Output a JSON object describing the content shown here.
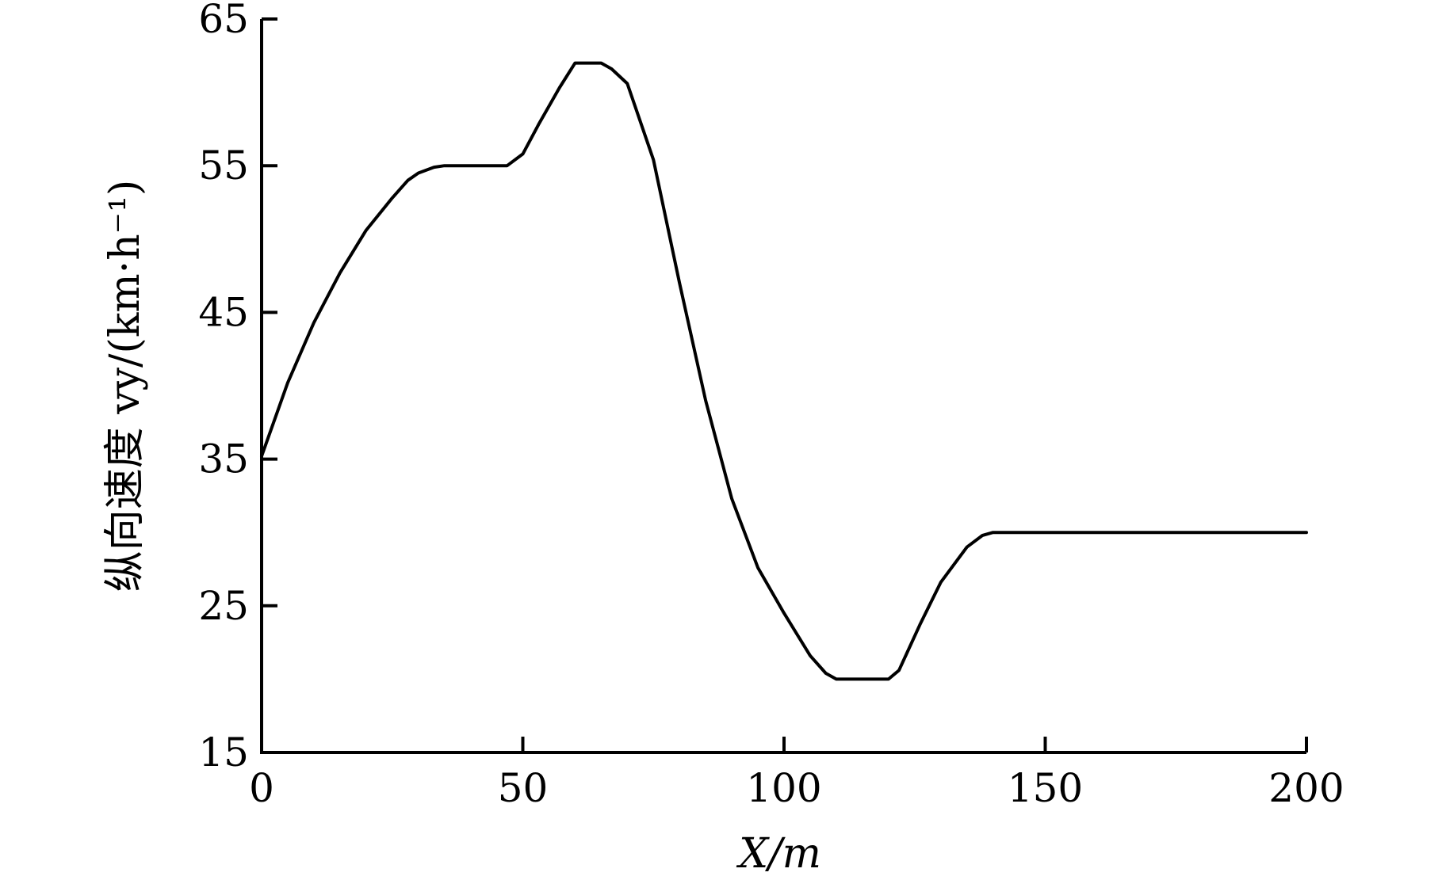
{
  "chart_data": {
    "type": "line",
    "title": "",
    "xlabel": "X/m",
    "ylabel": "纵向速度 vy/(km·h⁻¹)",
    "xlim": [
      0,
      200
    ],
    "ylim": [
      15,
      65
    ],
    "xticks": [
      0,
      50,
      100,
      150,
      200
    ],
    "yticks": [
      15,
      25,
      35,
      45,
      55,
      65
    ],
    "grid": false,
    "series": [
      {
        "x": [
          0,
          5,
          10,
          15,
          20,
          25,
          28,
          30,
          33,
          35,
          40,
          47,
          50,
          53,
          57,
          60,
          63,
          65,
          67,
          70,
          75,
          80,
          85,
          90,
          95,
          100,
          105,
          108,
          110,
          112,
          115,
          118,
          120,
          122,
          126,
          130,
          135,
          138,
          140,
          150,
          160,
          170,
          180,
          190,
          200
        ],
        "y": [
          35.2,
          40.2,
          44.3,
          47.7,
          50.6,
          52.8,
          54.0,
          54.5,
          54.9,
          55.0,
          55.0,
          55.0,
          55.8,
          57.8,
          60.3,
          62.0,
          62.0,
          62.0,
          61.6,
          60.6,
          55.4,
          47.0,
          39.0,
          32.3,
          27.6,
          24.5,
          21.6,
          20.4,
          20.0,
          20.0,
          20.0,
          20.0,
          20.0,
          20.6,
          23.7,
          26.6,
          29.0,
          29.8,
          30.0,
          30.0,
          30.0,
          30.0,
          30.0,
          30.0,
          30.0
        ]
      }
    ]
  }
}
